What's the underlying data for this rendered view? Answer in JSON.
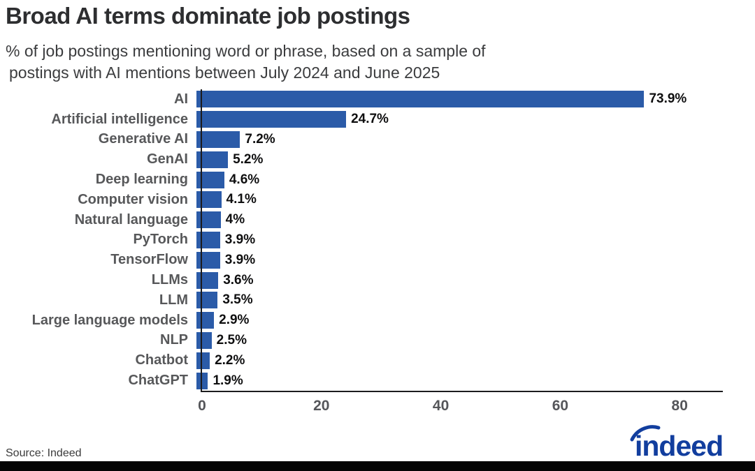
{
  "header": {
    "title": "Broad AI terms dominate job postings",
    "subtitle_line1": "% of job postings mentioning word or phrase, based on a sample of",
    "subtitle_line2": "postings with AI mentions between July 2024 and June 2025"
  },
  "chart_data": {
    "type": "bar",
    "orientation": "horizontal",
    "title": "Broad AI terms dominate job postings",
    "subtitle": "% of job postings mentioning word or phrase, based on a sample of postings with AI mentions between July 2024 and June 2025",
    "xlabel": "",
    "ylabel": "",
    "categories": [
      "AI",
      "Artificial intelligence",
      "Generative AI",
      "GenAI",
      "Deep learning",
      "Computer vision",
      "Natural language",
      "PyTorch",
      "TensorFlow",
      "LLMs",
      "LLM",
      "Large language models",
      "NLP",
      "Chatbot",
      "ChatGPT"
    ],
    "values": [
      73.9,
      24.7,
      7.2,
      5.2,
      4.6,
      4.1,
      4,
      3.9,
      3.9,
      3.6,
      3.5,
      2.9,
      2.5,
      2.2,
      1.9
    ],
    "value_labels": [
      "73.9%",
      "24.7%",
      "7.2%",
      "5.2%",
      "4.6%",
      "4.1%",
      "4%",
      "3.9%",
      "3.9%",
      "3.6%",
      "3.5%",
      "2.9%",
      "2.5%",
      "2.2%",
      "1.9%"
    ],
    "x_ticks": [
      0,
      20,
      40,
      60,
      80
    ],
    "xlim": [
      0,
      87
    ],
    "grid": false,
    "legend": false,
    "bar_color": "#2b5ba8",
    "axis_color": "#1c1c1e",
    "category_label_color": "#57585a",
    "value_label_color": "#0f0f10"
  },
  "footer": {
    "source": "Source: Indeed",
    "logo_text": "indeed",
    "logo_color": "#123e9e"
  }
}
